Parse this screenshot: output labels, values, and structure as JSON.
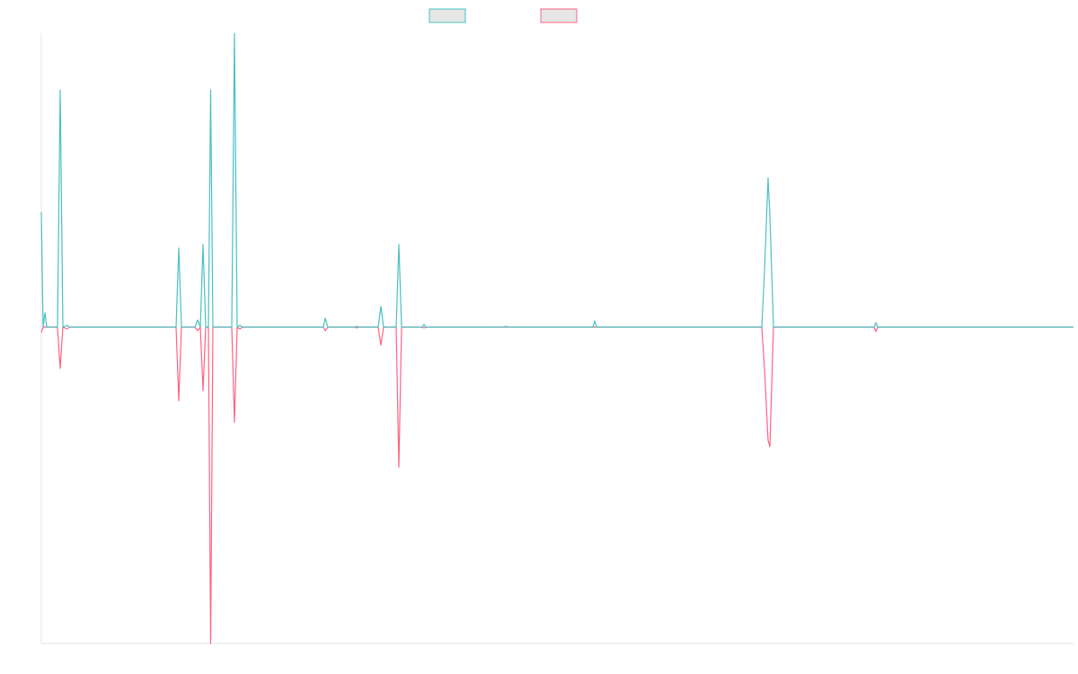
{
  "chart_data": {
    "type": "line",
    "x": [
      0,
      2,
      4,
      6,
      18,
      21,
      24,
      29,
      31,
      150,
      153,
      156,
      171,
      174,
      177,
      180,
      183,
      186,
      188.5,
      191,
      212,
      215,
      218,
      221,
      224,
      314,
      316,
      319,
      349,
      351,
      353,
      375,
      378,
      381,
      395,
      398,
      401,
      424,
      426,
      428,
      515,
      517,
      519,
      614,
      616,
      618,
      802,
      805,
      809,
      811,
      815,
      927,
      929,
      931,
      1149
    ],
    "xlim": [
      0,
      1149
    ],
    "ylim": [
      -352,
      327
    ],
    "series": [
      {
        "color": "#4bc0c0",
        "values": [
          128,
          0,
          16,
          0,
          0,
          264,
          0,
          2,
          0,
          0,
          88,
          0,
          0,
          8,
          0,
          92,
          0,
          0,
          264,
          0,
          0,
          327,
          0,
          2,
          0,
          0,
          10,
          0,
          0,
          1,
          0,
          0,
          23,
          0,
          0,
          92,
          0,
          0,
          3,
          0,
          0,
          1,
          0,
          0,
          7,
          0,
          0,
          62,
          166,
          124,
          0,
          0,
          5,
          0,
          0
        ]
      },
      {
        "color": "#ff6384",
        "values": [
          -6,
          0,
          0,
          0,
          0,
          -46,
          0,
          -2,
          0,
          0,
          -82,
          0,
          0,
          -4,
          0,
          -71,
          0,
          0,
          -352,
          0,
          0,
          -106,
          0,
          -2,
          0,
          0,
          -4,
          0,
          0,
          -1,
          0,
          0,
          -20,
          0,
          0,
          -156,
          0,
          0,
          -1,
          0,
          0,
          0,
          0,
          0,
          0,
          0,
          0,
          -46,
          -126,
          -133,
          0,
          0,
          -5,
          0,
          0
        ]
      }
    ]
  }
}
